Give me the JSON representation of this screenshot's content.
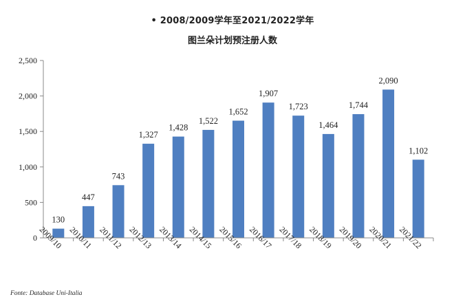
{
  "chart_data": {
    "type": "bar",
    "title": "• 2008/2009学年至2021/2022学年",
    "subtitle": "图兰朵计划预注册人数",
    "categories": [
      "2009/10",
      "2010/11",
      "2011/12",
      "2012/13",
      "2013/14",
      "2014/15",
      "2015/16",
      "2016/17",
      "2017/18",
      "2018/19",
      "2019/20",
      "2020/21",
      "2021/22"
    ],
    "values": [
      130,
      447,
      743,
      1327,
      1428,
      1522,
      1652,
      1907,
      1723,
      1464,
      1744,
      2090,
      1102
    ],
    "data_labels": [
      "130",
      "447",
      "743",
      "1,327",
      "1,428",
      "1,522",
      "1,652",
      "1,907",
      "1,723",
      "1,464",
      "1,744",
      "2,090",
      "1,102"
    ],
    "ylim": [
      0,
      2500
    ],
    "yticks": [
      0,
      500,
      1000,
      1500,
      2000,
      2500
    ],
    "ytick_labels": [
      "0",
      "500",
      "1,000",
      "1,500",
      "2,000",
      "2,500"
    ],
    "xlabel": "",
    "ylabel": "",
    "grid": false,
    "legend": "none",
    "bar_color": "#4f7fc1",
    "source": "Fonte: Database Uni-Italia"
  }
}
